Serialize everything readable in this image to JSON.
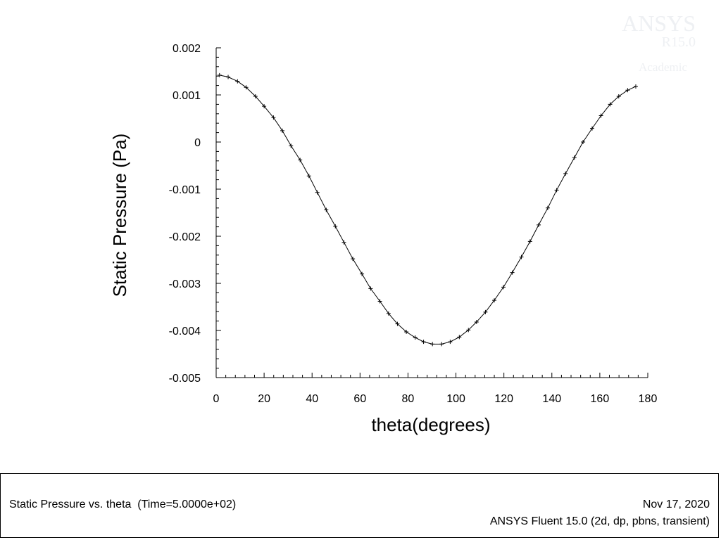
{
  "chart_data": {
    "type": "line",
    "xlabel": "theta(degrees)",
    "ylabel": "Static Pressure (Pa)",
    "xlim": [
      0,
      180
    ],
    "ylim": [
      -0.005,
      0.002
    ],
    "x_ticks": [
      0,
      20,
      40,
      60,
      80,
      100,
      120,
      140,
      160,
      180
    ],
    "x_tick_labels": [
      "0",
      "20",
      "40",
      "60",
      "80",
      "100",
      "120",
      "140",
      "160",
      "180"
    ],
    "y_ticks": [
      -0.005,
      -0.004,
      -0.003,
      -0.002,
      -0.001,
      0,
      0.001,
      0.002
    ],
    "y_tick_labels": [
      "-0.005",
      "-0.004",
      "-0.003",
      "-0.002",
      "-0.001",
      "0",
      "0.001",
      "0.002"
    ],
    "grid": false,
    "marker": "+",
    "series": [
      {
        "x": [
          1.4,
          5.0,
          8.9,
          12.5,
          16.4,
          20.0,
          23.9,
          27.6,
          31.2,
          35.0,
          38.7,
          42.2,
          45.9,
          49.7,
          53.3,
          57.0,
          60.8,
          64.4,
          68.3,
          71.9,
          75.6,
          79.3,
          83.0,
          86.5,
          90.2,
          94.0,
          97.6,
          101.4,
          105.2,
          108.6,
          112.3,
          116.0,
          119.8,
          123.5,
          127.3,
          130.9,
          134.5,
          138.3,
          142.0,
          145.7,
          149.4,
          153.0,
          156.8,
          160.5,
          164.3,
          167.9,
          171.6,
          175.0
        ],
        "y": [
          0.00142,
          0.00138,
          0.00129,
          0.00116,
          0.00097,
          0.00076,
          0.00052,
          0.00024,
          -8e-05,
          -0.00038,
          -0.00072,
          -0.00107,
          -0.00144,
          -0.00179,
          -0.00213,
          -0.00248,
          -0.0028,
          -0.00311,
          -0.00338,
          -0.00364,
          -0.00386,
          -0.00403,
          -0.00415,
          -0.00424,
          -0.00429,
          -0.00429,
          -0.00424,
          -0.00414,
          -0.00399,
          -0.00382,
          -0.00361,
          -0.00336,
          -0.00308,
          -0.00277,
          -0.00244,
          -0.00211,
          -0.00176,
          -0.0014,
          -0.00102,
          -0.00067,
          -0.00033,
          0.0,
          0.00029,
          0.00056,
          0.0008,
          0.00097,
          0.0011,
          0.00118
        ]
      }
    ]
  },
  "watermark": {
    "line1": "ANSYS",
    "line2": "R15.0",
    "line3": "Academic"
  },
  "footer": {
    "left": "Static Pressure vs. theta  (Time=5.0000e+02)",
    "date": "Nov 17, 2020",
    "product": "ANSYS Fluent 15.0 (2d, dp, pbns, transient)"
  }
}
